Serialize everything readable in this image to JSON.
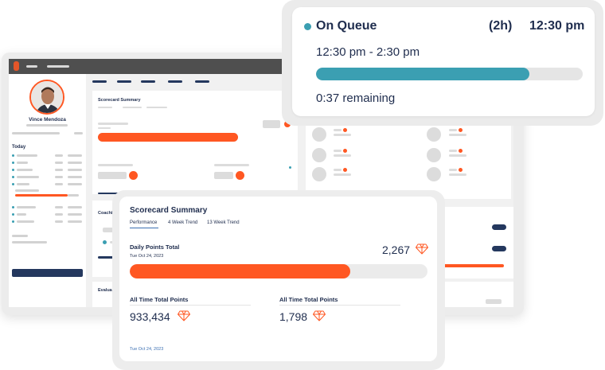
{
  "profile": {
    "name": "Vince Mendoza"
  },
  "sidebar": {
    "section_title": "Today"
  },
  "background": {
    "scorecard_title": "Scorecard Summary",
    "coaching_label": "Coachi",
    "evaluations_label": "Evalua"
  },
  "queue": {
    "status": "On Queue",
    "duration": "(2h)",
    "start_time": "12:30 pm",
    "range": "12:30 pm - 2:30 pm",
    "progress_fraction": 0.8,
    "remaining": "0:37 remaining",
    "accent_color": "#3b9fb2"
  },
  "scorecard": {
    "title": "Scorecard Summary",
    "tabs": [
      {
        "label": "Performance"
      },
      {
        "label": "4 Week Trend"
      },
      {
        "label": "13 Week Trend"
      }
    ],
    "daily": {
      "label": "Daily Points Total",
      "date": "Tue Oct 24, 2023",
      "value": "2,267",
      "progress_fraction": 0.74
    },
    "all_time_left": {
      "label": "All Time Total Points",
      "value": "933,434"
    },
    "all_time_right": {
      "label": "All Time Total Points",
      "value": "1,798"
    },
    "footer_date": "Tue Oct 24, 2023",
    "accent_color": "#ff5722",
    "icon": "diamond-icon"
  }
}
